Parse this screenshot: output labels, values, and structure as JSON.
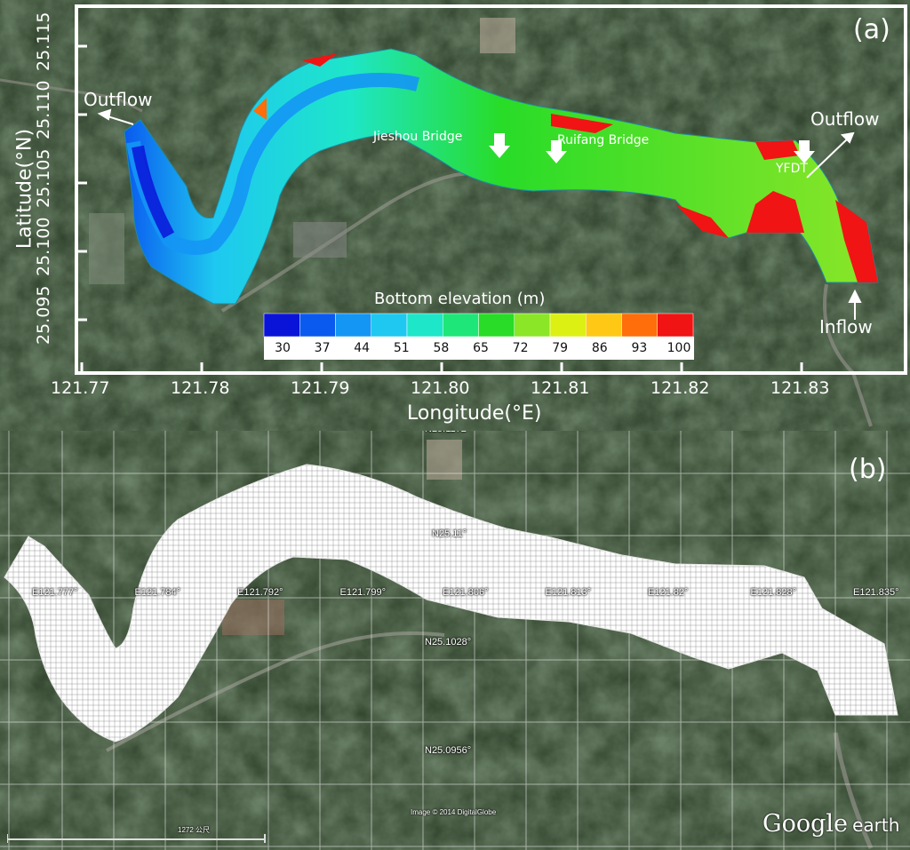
{
  "panel_a": {
    "label": "(a)",
    "y_axis_title": "Latitude(°N)",
    "x_axis_title": "Longitude(°E)",
    "y_ticks": [
      "25.115",
      "25.110",
      "25.105",
      "25.100",
      "25.095"
    ],
    "x_ticks": [
      "121.77",
      "121.78",
      "121.79",
      "121.80",
      "121.81",
      "121.82",
      "121.83"
    ],
    "annotations": {
      "outflow_left": "Outflow",
      "outflow_right": "Outflow",
      "inflow": "Inflow",
      "jieshou": "Jieshou Bridge",
      "ruifang": "Ruifang Bridge",
      "yfdt": "YFDT"
    },
    "colorbar": {
      "title": "Bottom elevation (m)",
      "labels": [
        "30",
        "37",
        "44",
        "51",
        "58",
        "65",
        "72",
        "79",
        "86",
        "93",
        "100"
      ],
      "colors": [
        "#0a14d8",
        "#0a5af0",
        "#1496f5",
        "#1ec8f0",
        "#1ee6c8",
        "#1ee678",
        "#28dc28",
        "#8ce628",
        "#dcf014",
        "#ffc814",
        "#ff6e0a",
        "#f01414"
      ]
    }
  },
  "panel_b": {
    "label": "(b)",
    "lat_labels": [
      "N25.1172°",
      "N25.11°",
      "N25.1028°",
      "N25.0956°"
    ],
    "lon_labels": [
      "E121.777°",
      "E121.784°",
      "E121.792°",
      "E121.799°",
      "E121.806°",
      "E121.813°",
      "E121.82°",
      "E121.828°",
      "E121.835°"
    ],
    "image_credit": "Image © 2014 DigitalGlobe",
    "scale_text": "1272 公尺",
    "brand": "Google",
    "brand_suffix": "earth"
  }
}
